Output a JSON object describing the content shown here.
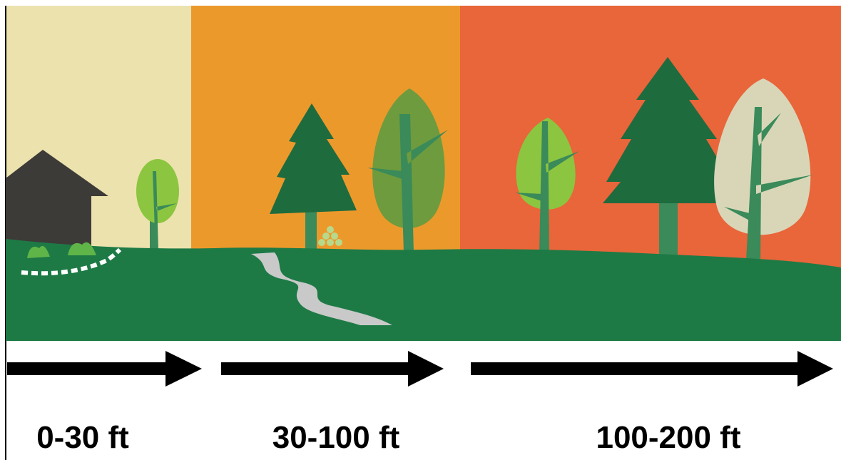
{
  "zones": [
    {
      "label": "0-30 ft"
    },
    {
      "label": "30-100 ft"
    },
    {
      "label": "100-200 ft"
    }
  ]
}
